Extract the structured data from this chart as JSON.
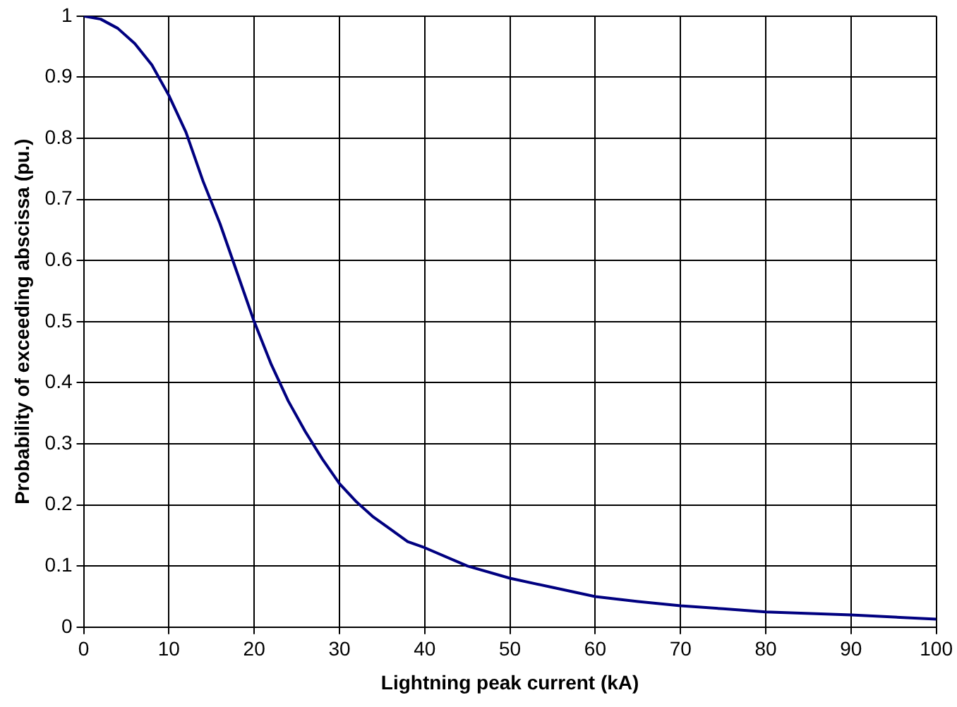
{
  "chart_data": {
    "type": "line",
    "xlabel": "Lightning peak current (kA)",
    "ylabel": "Probability of exceeding abscissa (pu.)",
    "x": [
      0,
      2,
      4,
      6,
      8,
      10,
      12,
      14,
      16,
      18,
      20,
      22,
      24,
      26,
      28,
      30,
      32,
      34,
      36,
      38,
      40,
      45,
      50,
      55,
      60,
      65,
      70,
      75,
      80,
      90,
      100
    ],
    "series": [
      {
        "color": "#000080",
        "values": [
          1,
          0.995,
          0.98,
          0.955,
          0.92,
          0.87,
          0.81,
          0.73,
          0.66,
          0.58,
          0.5,
          0.43,
          0.37,
          0.32,
          0.275,
          0.235,
          0.205,
          0.18,
          0.16,
          0.14,
          0.13,
          0.1,
          0.08,
          0.065,
          0.05,
          0.042,
          0.035,
          0.03,
          0.025,
          0.02,
          0.013
        ]
      }
    ],
    "xlim": [
      0,
      100
    ],
    "xticks": [
      0,
      10,
      20,
      30,
      40,
      50,
      60,
      70,
      80,
      90,
      100
    ],
    "ylim": [
      0,
      1
    ],
    "yticks": [
      0,
      0.1,
      0.2,
      0.3,
      0.4,
      0.5,
      0.6,
      0.7,
      0.8,
      0.9,
      1
    ],
    "grid": true,
    "legend": false,
    "marker": "none",
    "line_style": "solid"
  }
}
